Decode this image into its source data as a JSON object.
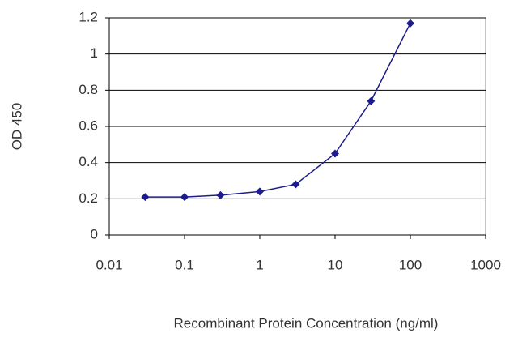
{
  "chart_data": {
    "type": "line",
    "x_label": "Recombinant Protein Concentration (ng/ml)",
    "y_label": "OD 450",
    "x": [
      0.03,
      0.1,
      0.3,
      1,
      3,
      10,
      30,
      100
    ],
    "series": [
      {
        "color": "#1c1c8c",
        "values": [
          0.21,
          0.21,
          0.22,
          0.24,
          0.28,
          0.45,
          0.74,
          1.17
        ]
      }
    ],
    "xscale": "log",
    "xlim": [
      0.01,
      1000
    ],
    "xticks": [
      0.01,
      0.1,
      1,
      10,
      100,
      1000
    ],
    "ylim": [
      0,
      1.2
    ],
    "yticks": [
      0,
      0.2,
      0.4,
      0.6,
      0.8,
      1,
      1.2
    ],
    "grid": true
  }
}
